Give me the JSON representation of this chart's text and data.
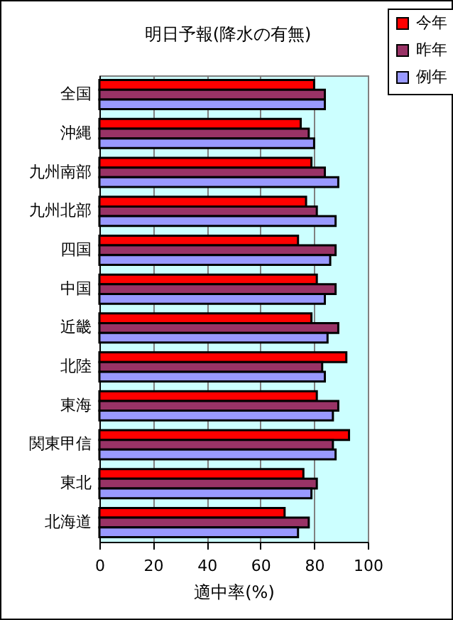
{
  "chart_data": {
    "type": "bar",
    "orientation": "horizontal",
    "title": "明日予報(降水の有無)",
    "xlabel": "適中率(%)",
    "categories": [
      "全国",
      "沖縄",
      "九州南部",
      "九州北部",
      "四国",
      "中国",
      "近畿",
      "北陸",
      "東海",
      "関東甲信",
      "東北",
      "北海道"
    ],
    "series": [
      {
        "name": "今年",
        "color": "#ff0000",
        "values": [
          80,
          75,
          79,
          77,
          74,
          81,
          79,
          92,
          81,
          93,
          76,
          69
        ]
      },
      {
        "name": "昨年",
        "color": "#993366",
        "values": [
          84,
          78,
          84,
          81,
          88,
          88,
          89,
          83,
          89,
          87,
          81,
          78
        ]
      },
      {
        "name": "例年",
        "color": "#9999ff",
        "values": [
          84,
          80,
          89,
          88,
          86,
          84,
          85,
          84,
          87,
          88,
          79,
          74
        ]
      }
    ],
    "xlim": [
      0,
      100
    ],
    "xticks": [
      0,
      20,
      40,
      60,
      80,
      100
    ],
    "grid": "x",
    "legend": "top right"
  }
}
